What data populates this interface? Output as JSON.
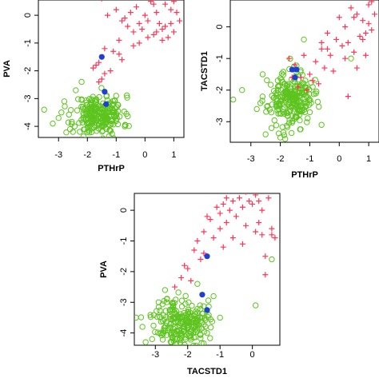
{
  "colors": {
    "group_a": "#ff3355",
    "group_b": "#5dc41e",
    "group_c": "#1f3fd1",
    "frame": "#000000"
  },
  "markers": {
    "group_a": "plus",
    "group_b": "open-circle",
    "group_c": "filled-circle"
  },
  "chart_data": [
    {
      "type": "scatter",
      "title": "",
      "xlabel": "PTHrP",
      "ylabel": "PVA",
      "xlim": [
        -3.7,
        1.35
      ],
      "ylim": [
        -4.4,
        0.55
      ],
      "xticks": [
        "-3",
        "-2",
        "-1",
        "0",
        "1"
      ],
      "xtick_values": [
        -3,
        -2,
        -1,
        0,
        1
      ],
      "yticks": [
        "-4",
        "-3",
        "-2",
        "-1",
        "0"
      ],
      "ytick_values": [
        -4,
        -3,
        -2,
        -1,
        0
      ],
      "grid": false,
      "legend": "none",
      "series": [
        {
          "values": {
            "x": [
              -1.6,
              -1.8,
              -1.4,
              -1.2,
              -1.5,
              -1.0,
              -0.9,
              -0.8,
              -0.6,
              -0.5,
              -0.4,
              -0.3,
              -0.2,
              -0.1,
              0.0,
              0.1,
              0.2,
              0.3,
              0.4,
              0.5,
              0.6,
              0.7,
              0.8,
              0.9,
              1.0,
              1.1,
              1.2,
              -1.5,
              -1.3,
              -0.7,
              -0.2,
              0.3,
              0.7,
              1.0,
              -0.4,
              0.1,
              0.9,
              -1.1,
              -0.8,
              -1.6,
              -1.4,
              -1.7,
              0.4,
              -0.9,
              0.6
            ],
            "y": [
              -1.7,
              -1.9,
              -2.1,
              -2.0,
              -2.3,
              0.2,
              -0.9,
              -0.2,
              -0.4,
              0.1,
              -0.6,
              0.3,
              -0.3,
              -0.5,
              0.0,
              -0.2,
              0.5,
              -0.7,
              0.1,
              -0.3,
              -0.5,
              0.4,
              -0.8,
              0.2,
              -0.6,
              0.1,
              -0.2,
              0.6,
              0.0,
              -0.1,
              -1.0,
              0.4,
              -0.4,
              0.5,
              -1.1,
              -0.8,
              -0.3,
              -1.3,
              -1.6,
              -2.4,
              -1.2,
              -1.8,
              -0.6,
              -1.4,
              -0.9
            ]
          }
        },
        {
          "values": {
            "cx": -1.6,
            "cy": -3.6,
            "sx": 0.42,
            "sy": 0.36,
            "n": 240,
            "seed": 11,
            "x_extra": [
              -3.5,
              -3.2,
              -2.8,
              -2.6,
              -2.4,
              -1.0,
              -0.7,
              -2.9,
              -2.2,
              -1.1,
              -3.0,
              -2.5
            ],
            "y_extra": [
              -3.4,
              -3.9,
              -3.1,
              -4.1,
              -2.7,
              -2.9,
              -4.0,
              -3.5,
              -2.4,
              -3.2,
              -3.7,
              -4.2
            ]
          }
        },
        {
          "values": {
            "x": [
              -1.5,
              -1.4,
              -1.35
            ],
            "y": [
              -1.5,
              -2.75,
              -3.2
            ]
          }
        }
      ]
    },
    {
      "type": "scatter",
      "title": "",
      "xlabel": "PTHrP",
      "ylabel": "TACSTD1",
      "xlim": [
        -3.7,
        1.35
      ],
      "ylim": [
        -3.65,
        0.85
      ],
      "xticks": [
        "-3",
        "-2",
        "-1",
        "0",
        "1"
      ],
      "xtick_values": [
        -3,
        -2,
        -1,
        0,
        1
      ],
      "yticks": [
        "-3",
        "-2",
        "-1",
        "0"
      ],
      "ytick_values": [
        -3,
        -2,
        -1,
        0
      ],
      "grid": false,
      "legend": "none",
      "series": [
        {
          "values": {
            "x": [
              -1.7,
              -1.5,
              -1.3,
              -1.2,
              -1.0,
              -0.8,
              -0.6,
              -0.5,
              -0.4,
              -0.3,
              -0.1,
              0.0,
              0.1,
              0.2,
              0.3,
              0.4,
              0.5,
              0.6,
              0.7,
              0.8,
              0.9,
              1.0,
              1.1,
              1.2,
              -0.7,
              -0.2,
              0.3,
              0.8,
              1.0,
              -1.1,
              -0.9,
              0.2,
              0.6,
              -0.4,
              0.9,
              -1.6,
              1.1,
              0.5,
              -0.6,
              -1.4
            ],
            "y": [
              -1.0,
              -1.2,
              -1.6,
              -0.9,
              -1.5,
              -1.1,
              -0.7,
              -1.3,
              -0.2,
              -0.9,
              -0.4,
              0.3,
              -0.6,
              0.0,
              -0.5,
              0.6,
              -0.8,
              0.4,
              -0.3,
              0.2,
              -0.9,
              0.7,
              -0.1,
              0.4,
              -1.8,
              -1.4,
              -2.2,
              -0.4,
              0.1,
              -2.0,
              -1.7,
              -1.0,
              -1.3,
              -0.7,
              -0.2,
              -1.6,
              0.8,
              0.3,
              -0.5,
              -1.9
            ]
          }
        },
        {
          "values": {
            "cx": -1.65,
            "cy": -2.3,
            "sx": 0.38,
            "sy": 0.42,
            "n": 240,
            "seed": 23,
            "x_extra": [
              -3.6,
              -3.3,
              -2.6,
              -2.3,
              -1.0,
              -0.6,
              -0.9,
              -2.8,
              -2.0,
              0.4,
              -1.2,
              -2.5
            ],
            "y_extra": [
              -2.3,
              -2.0,
              -1.5,
              -3.2,
              -2.7,
              -3.1,
              -1.9,
              -2.6,
              -3.5,
              -1.0,
              -0.4,
              -3.4
            ]
          }
        },
        {
          "values": {
            "x": [
              -1.6,
              -1.45,
              -1.5
            ],
            "y": [
              -1.35,
              -1.35,
              -1.6
            ]
          }
        }
      ]
    },
    {
      "type": "scatter",
      "title": "",
      "xlabel": "TACSTD1",
      "ylabel": "PVA",
      "xlim": [
        -3.65,
        0.85
      ],
      "ylim": [
        -4.4,
        0.55
      ],
      "xticks": [
        "-3",
        "-2",
        "-1",
        "0"
      ],
      "xtick_values": [
        -3,
        -2,
        -1,
        0
      ],
      "yticks": [
        "-4",
        "-3",
        "-2",
        "-1",
        "0"
      ],
      "ytick_values": [
        -4,
        -3,
        -2,
        -1,
        0
      ],
      "grid": false,
      "legend": "none",
      "series": [
        {
          "values": {
            "x": [
              -2.2,
              -2.0,
              -1.8,
              -1.7,
              -1.5,
              -1.3,
              -1.2,
              -1.1,
              -1.0,
              -0.9,
              -0.8,
              -0.7,
              -0.6,
              -0.5,
              -0.4,
              -0.3,
              -0.2,
              -0.1,
              0.0,
              0.1,
              0.2,
              0.3,
              0.4,
              0.5,
              0.6,
              0.7,
              -1.6,
              -1.4,
              -0.9,
              -0.6,
              -0.3,
              0.1,
              0.4,
              -2.4,
              -1.9,
              -1.0,
              0.6,
              -0.8,
              -2.1,
              0.2,
              -0.2,
              -1.5,
              0.3
            ],
            "y": [
              -2.2,
              -1.9,
              -1.3,
              -1.0,
              -0.7,
              -0.3,
              -0.9,
              0.1,
              -0.6,
              0.2,
              -0.4,
              0.0,
              0.3,
              -0.2,
              0.4,
              0.1,
              -0.5,
              0.3,
              0.2,
              0.5,
              0.3,
              -0.8,
              -2.1,
              0.4,
              -0.6,
              -0.9,
              -1.6,
              -0.2,
              -1.2,
              -0.9,
              -1.1,
              -0.7,
              -1.5,
              -2.5,
              -2.3,
              -0.1,
              -0.8,
              0.4,
              -1.8,
              -0.4,
              0.6,
              -1.4,
              0.0
            ]
          }
        },
        {
          "values": {
            "cx": -2.2,
            "cy": -3.65,
            "sx": 0.4,
            "sy": 0.4,
            "n": 240,
            "seed": 37,
            "x_extra": [
              -3.6,
              -3.4,
              -3.1,
              -2.9,
              -1.2,
              -1.0,
              0.1,
              -1.4,
              -2.7,
              -1.7,
              -3.3,
              0.6
            ],
            "y_extra": [
              -3.5,
              -3.8,
              -4.2,
              -3.0,
              -2.8,
              -3.5,
              -3.1,
              -4.0,
              -2.6,
              -2.4,
              -4.3,
              -1.6
            ]
          }
        },
        {
          "values": {
            "x": [
              -1.4,
              -1.55,
              -1.4
            ],
            "y": [
              -1.5,
              -2.75,
              -3.25
            ]
          }
        }
      ]
    }
  ]
}
